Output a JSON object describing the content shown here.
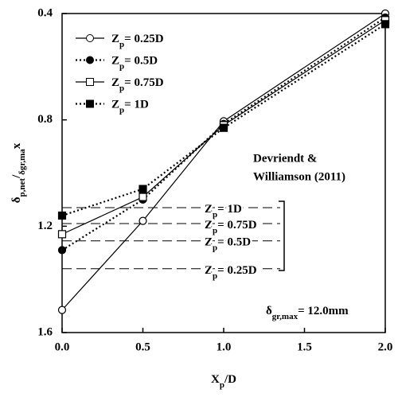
{
  "chart_data": {
    "type": "line",
    "xlabel": "Xp/D",
    "ylabel": "δp,net/δgr,max",
    "x": [
      0,
      0.5,
      1.0,
      2.0
    ],
    "xlim": [
      0,
      2.0
    ],
    "xticks": [
      {
        "value": 0,
        "label": "0.0"
      },
      {
        "value": 0.5,
        "label": "0.5"
      },
      {
        "value": 1.0,
        "label": "1.0"
      },
      {
        "value": 1.5,
        "label": "1.5"
      },
      {
        "value": 2.0,
        "label": "2.0"
      }
    ],
    "ylim": [
      0.4,
      1.6
    ],
    "yticks": [
      0.4,
      0.8,
      1.2,
      1.6
    ],
    "y_inverted": true,
    "series": [
      {
        "name": "Zp= 0.25D",
        "color": "#000000",
        "marker": "open-circle",
        "dash": "solid",
        "values": [
          1.515,
          1.18,
          0.805,
          0.4
        ]
      },
      {
        "name": "Zp= 0.5D",
        "color": "#000000",
        "marker": "filled-circle",
        "dash": "dotted",
        "values": [
          1.29,
          1.1,
          0.815,
          0.415
        ]
      },
      {
        "name": "Zp= 0.75D",
        "color": "#000000",
        "marker": "open-square",
        "dash": "solid",
        "values": [
          1.23,
          1.09,
          0.82,
          0.425
        ]
      },
      {
        "name": "Zp= 1D",
        "color": "#000000",
        "marker": "filled-square",
        "dash": "dotted",
        "values": [
          1.16,
          1.06,
          0.83,
          0.44
        ]
      }
    ],
    "reference_lines": [
      {
        "label": "Zp= 1D",
        "value": 1.13
      },
      {
        "label": "Zp= 0.75D",
        "value": 1.19
      },
      {
        "label": "Zp= 0.5D",
        "value": 1.255
      },
      {
        "label": "Zp= 0.25D",
        "value": 1.36
      }
    ],
    "annotations": [
      "Devriendt &",
      "Williamson (2011)",
      "δgr,max= 12.0mm"
    ],
    "legend": "upper left"
  }
}
